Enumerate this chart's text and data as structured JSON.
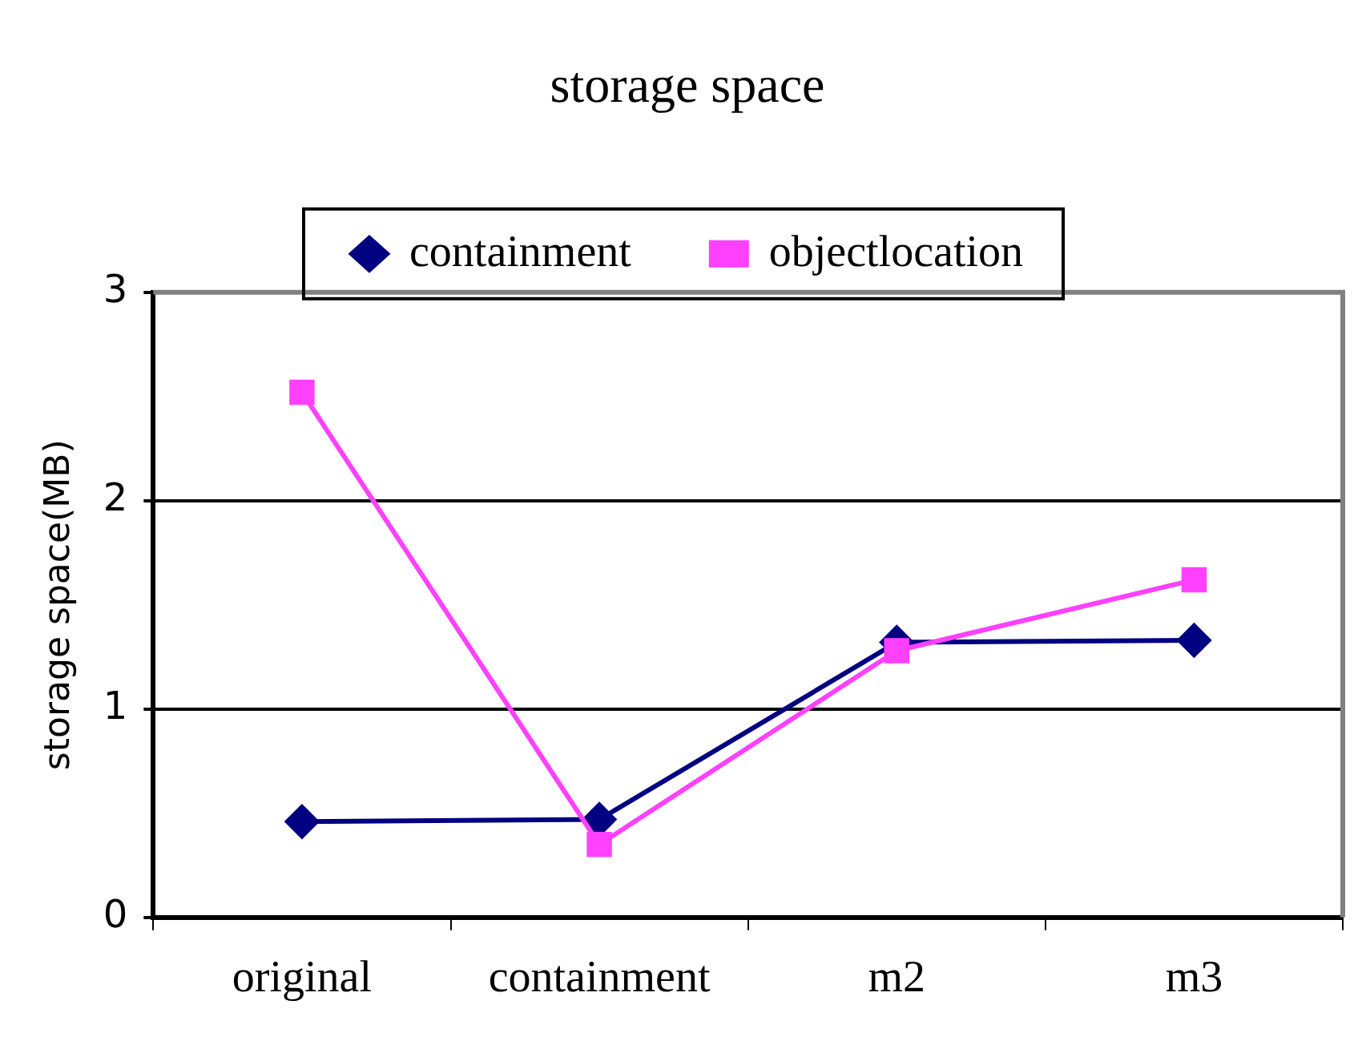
{
  "chart_data": {
    "type": "line",
    "title": "storage space",
    "ylabel": "storage space(MB)",
    "categories": [
      "original",
      "containment",
      "m2",
      "m3"
    ],
    "series": [
      {
        "name": "containment",
        "color": "#000080",
        "marker": "diamond",
        "values": [
          0.46,
          0.47,
          1.32,
          1.33
        ]
      },
      {
        "name": "objectlocation",
        "color": "#ff40ff",
        "marker": "square",
        "values": [
          2.52,
          0.35,
          1.28,
          1.62
        ]
      }
    ],
    "ylim": [
      0,
      3
    ],
    "yticks": [
      0,
      1,
      2,
      3
    ],
    "grid": "y",
    "legend": "top",
    "line_style": "solid"
  }
}
